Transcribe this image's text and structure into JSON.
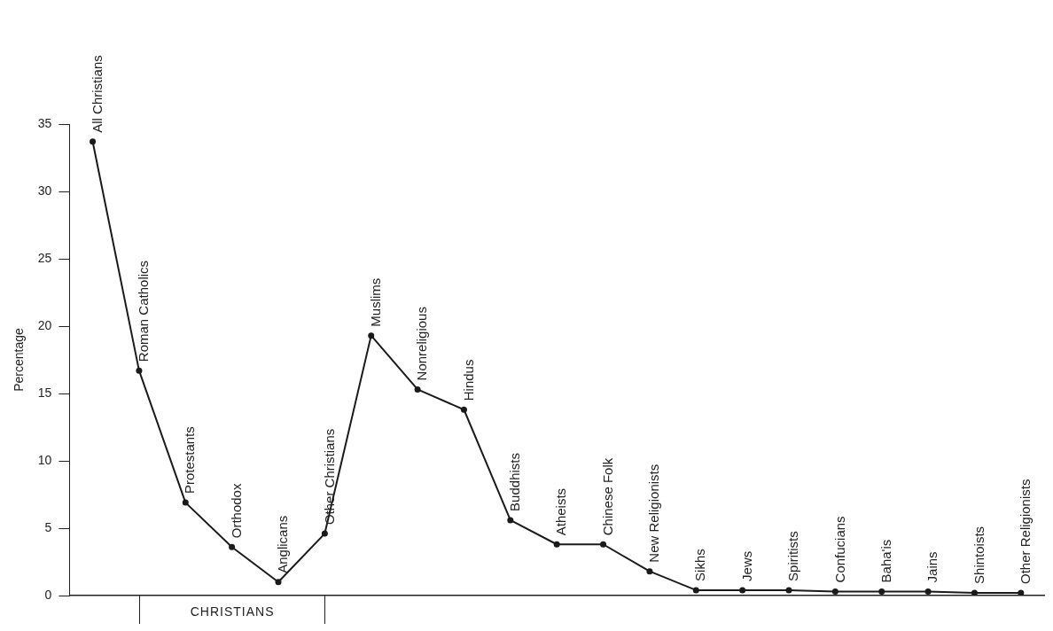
{
  "chart_data": {
    "type": "line",
    "ylabel": "Percentage",
    "categories": [
      "All Christians",
      "Roman Catholics",
      "Protestants",
      "Orthodox",
      "Anglicans",
      "Other Christians",
      "Muslims",
      "Nonreligious",
      "Hindus",
      "Buddhists",
      "Atheists",
      "Chinese Folk",
      "New Religionists",
      "Sikhs",
      "Jews",
      "Spiritists",
      "Confucians",
      "Baha'is",
      "Jains",
      "Shintoists",
      "Other Religionists"
    ],
    "series": [
      {
        "color": "#1a1a1a",
        "values": [
          33.7,
          16.7,
          6.9,
          3.6,
          1.0,
          4.6,
          19.3,
          15.3,
          13.8,
          5.6,
          3.8,
          3.8,
          1.8,
          0.4,
          0.4,
          0.4,
          0.3,
          0.3,
          0.3,
          0.2,
          0.2
        ]
      }
    ],
    "ylim": [
      0,
      35
    ],
    "yticks": [
      0,
      5,
      10,
      15,
      20,
      25,
      30,
      35
    ],
    "grid": false,
    "legend": false,
    "tick_labels": "y",
    "marker": "circle",
    "line_style": "solid",
    "annotations": [
      "CHRISTIANS"
    ]
  }
}
